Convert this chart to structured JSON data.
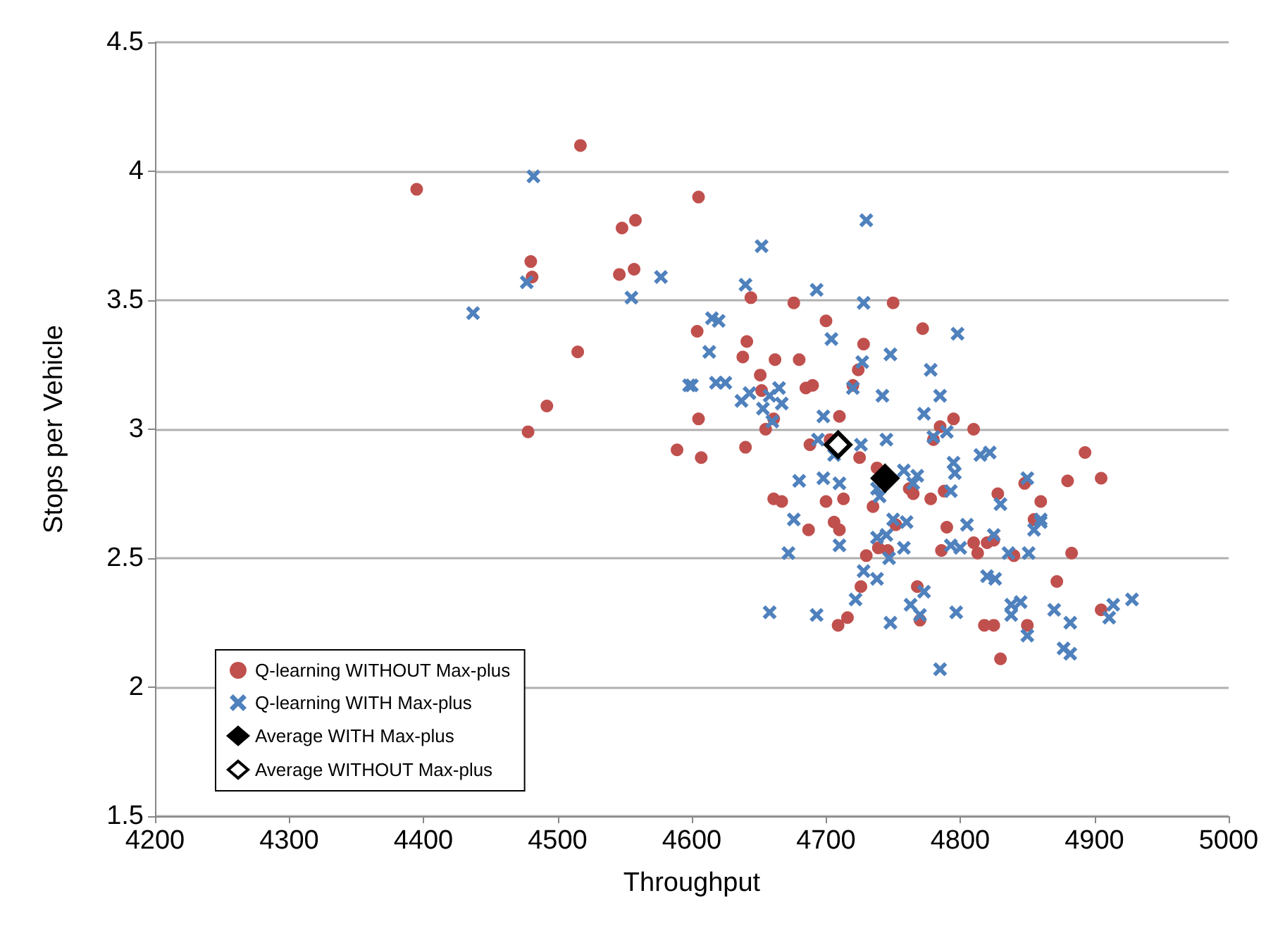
{
  "chart_data": {
    "type": "scatter",
    "xlabel": "Throughput",
    "ylabel": "Stops per Vehicle",
    "xlim": [
      4200,
      5000
    ],
    "xticks": [
      4200,
      4300,
      4400,
      4500,
      4600,
      4700,
      4800,
      4900,
      5000
    ],
    "ylim": [
      1.5,
      4.5
    ],
    "yticks": [
      1.5,
      2,
      2.5,
      3,
      3.5,
      4,
      4.5
    ],
    "grid": "y",
    "legend": "bottom left",
    "series": [
      {
        "name": "Q-learning WITHOUT Max-plus",
        "color": "#c0504d",
        "marker": "circle",
        "x": [
          4395,
          4517,
          4480,
          4481,
          4478,
          4492,
          4515,
          4548,
          4558,
          4546,
          4557,
          4605,
          4604,
          4605,
          4607,
          4589,
          4641,
          4638,
          4644,
          4640,
          4651,
          4652,
          4662,
          4661,
          4655,
          4676,
          4680,
          4685,
          4690,
          4688,
          4687,
          4661,
          4667,
          4700,
          4703,
          4710,
          4720,
          4724,
          4728,
          4750,
          4772,
          4700,
          4706,
          4710,
          4713,
          4709,
          4716,
          4726,
          4725,
          4735,
          4738,
          4739,
          4746,
          4752,
          4762,
          4765,
          4768,
          4770,
          4778,
          4780,
          4786,
          4788,
          4790,
          4795,
          4785,
          4810,
          4810,
          4813,
          4820,
          4825,
          4828,
          4830,
          4818,
          4825,
          4840,
          4848,
          4855,
          4860,
          4872,
          4880,
          4883,
          4893,
          4905,
          4905,
          4850,
          4730
        ],
        "values": [
          3.93,
          4.1,
          3.65,
          3.59,
          2.99,
          3.09,
          3.3,
          3.78,
          3.81,
          3.6,
          3.62,
          3.9,
          3.38,
          3.04,
          2.89,
          2.92,
          3.34,
          3.28,
          3.51,
          2.93,
          3.21,
          3.15,
          3.27,
          3.04,
          3.0,
          3.49,
          3.27,
          3.16,
          3.17,
          2.94,
          2.61,
          2.73,
          2.72,
          3.42,
          2.96,
          3.05,
          3.17,
          3.23,
          3.33,
          3.49,
          3.39,
          2.72,
          2.64,
          2.61,
          2.73,
          2.24,
          2.27,
          2.39,
          2.89,
          2.7,
          2.85,
          2.54,
          2.53,
          2.63,
          2.77,
          2.75,
          2.39,
          2.26,
          2.73,
          2.96,
          2.53,
          2.76,
          2.62,
          3.04,
          3.01,
          3.0,
          2.56,
          2.52,
          2.56,
          2.57,
          2.75,
          2.11,
          2.24,
          2.24,
          2.51,
          2.79,
          2.65,
          2.72,
          2.41,
          2.8,
          2.52,
          2.91,
          2.81,
          2.3,
          2.24,
          2.51
        ]
      },
      {
        "name": "Q-learning WITH Max-plus",
        "color": "#4f81bd",
        "marker": "cross",
        "x": [
          4437,
          4482,
          4477,
          4555,
          4577,
          4598,
          4600,
          4613,
          4615,
          4620,
          4618,
          4625,
          4637,
          4640,
          4643,
          4652,
          4653,
          4660,
          4658,
          4665,
          4667,
          4693,
          4698,
          4704,
          4730,
          4728,
          4727,
          4742,
          4748,
          4778,
          4798,
          4785,
          4790,
          4773,
          4745,
          4720,
          4706,
          4698,
          4680,
          4676,
          4694,
          4710,
          4726,
          4738,
          4740,
          4758,
          4765,
          4768,
          4780,
          4795,
          4796,
          4815,
          4822,
          4850,
          4860,
          4860,
          4855,
          4851,
          4830,
          4836,
          4820,
          4845,
          4838,
          4838,
          4826,
          4870,
          4877,
          4882,
          4882,
          4911,
          4914,
          4928,
          4850,
          4785,
          4797,
          4763,
          4770,
          4773,
          4748,
          4738,
          4728,
          4722,
          4693,
          4658,
          4672,
          4745,
          4747,
          4758,
          4738,
          4760,
          4750,
          4800,
          4793,
          4825,
          4805,
          4793,
          4710
        ],
        "values": [
          3.45,
          3.98,
          3.57,
          3.51,
          3.59,
          3.17,
          3.17,
          3.3,
          3.43,
          3.42,
          3.18,
          3.18,
          3.11,
          3.56,
          3.14,
          3.71,
          3.08,
          3.03,
          3.13,
          3.16,
          3.1,
          3.54,
          3.05,
          3.35,
          3.81,
          3.49,
          3.26,
          3.13,
          3.29,
          3.23,
          3.37,
          3.13,
          2.99,
          3.06,
          2.96,
          3.16,
          2.9,
          2.81,
          2.8,
          2.65,
          2.96,
          2.79,
          2.94,
          2.77,
          2.74,
          2.84,
          2.79,
          2.82,
          2.97,
          2.87,
          2.83,
          2.9,
          2.91,
          2.81,
          2.65,
          2.64,
          2.61,
          2.52,
          2.71,
          2.52,
          2.43,
          2.33,
          2.32,
          2.28,
          2.42,
          2.3,
          2.15,
          2.13,
          2.25,
          2.27,
          2.32,
          2.34,
          2.2,
          2.07,
          2.29,
          2.32,
          2.28,
          2.37,
          2.25,
          2.42,
          2.45,
          2.34,
          2.28,
          2.29,
          2.52,
          2.59,
          2.5,
          2.54,
          2.58,
          2.64,
          2.65,
          2.54,
          2.55,
          2.59,
          2.63,
          2.76,
          2.55
        ]
      },
      {
        "name": "Average WITH Max-plus",
        "color": "#000000",
        "marker": "diamond",
        "x": [
          4744
        ],
        "values": [
          2.81
        ]
      },
      {
        "name": "Average WITHOUT Max-plus",
        "color": "#ffffff",
        "marker": "diamond",
        "x": [
          4709
        ],
        "values": [
          2.94
        ]
      }
    ]
  }
}
